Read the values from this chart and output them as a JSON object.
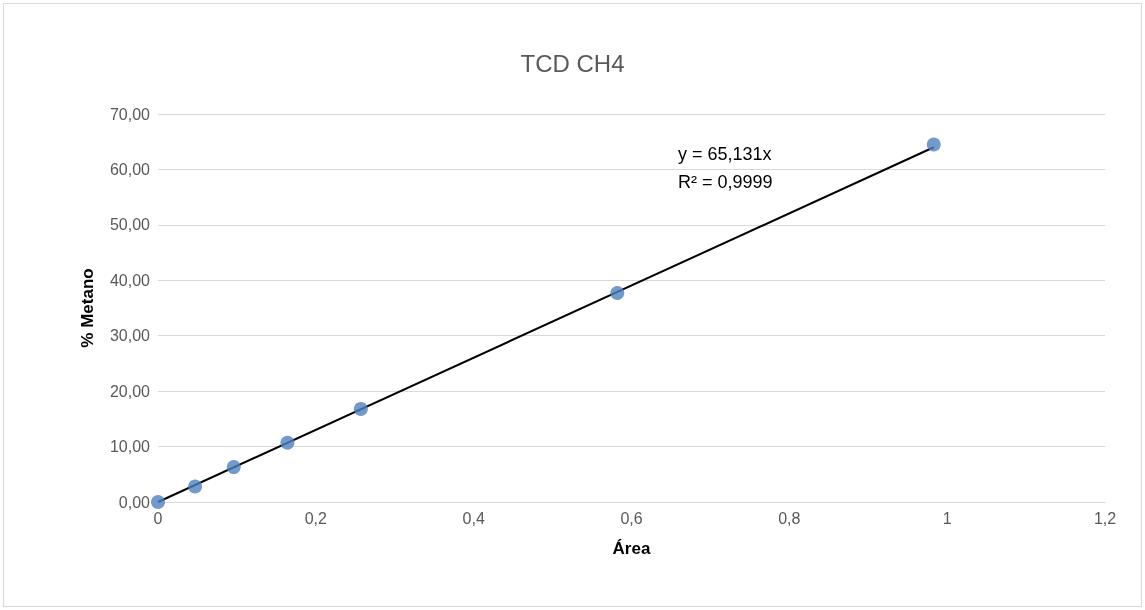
{
  "chart_data": {
    "type": "scatter",
    "title": "TCD CH4",
    "xlabel": "Área",
    "ylabel": "% Metano",
    "xlim": [
      0,
      1.2
    ],
    "xticks": [
      0,
      {
        "value": 0.2,
        "label": "0,2"
      },
      {
        "value": 0.4,
        "label": "0,4"
      },
      {
        "value": 0.6,
        "label": "0,6"
      },
      {
        "value": 0.8,
        "label": "0,8"
      },
      1,
      {
        "value": 1.2,
        "label": "1,2"
      }
    ],
    "ylim": [
      0,
      70
    ],
    "yticks": [
      {
        "value": 0,
        "label": "0,00"
      },
      {
        "value": 10,
        "label": "10,00"
      },
      {
        "value": 20,
        "label": "20,00"
      },
      {
        "value": 30,
        "label": "30,00"
      },
      {
        "value": 40,
        "label": "40,00"
      },
      {
        "value": 50,
        "label": "50,00"
      },
      {
        "value": 60,
        "label": "60,00"
      },
      {
        "value": 70,
        "label": "70,00"
      }
    ],
    "grid": "y",
    "marker": "circle",
    "series": [
      {
        "color": "#4f81bd",
        "x": [
          0,
          0.047,
          0.096,
          0.164,
          0.257,
          0.582,
          0.983
        ],
        "values": [
          0,
          2.8,
          6.3,
          10.7,
          16.8,
          37.7,
          64.5
        ]
      },
      {
        "type": "line",
        "color": "#000000",
        "marker": "none",
        "line_style": "solid",
        "x": [
          0,
          0.983
        ],
        "values": [
          0,
          64.0
        ]
      }
    ],
    "annotations": [
      "y = 65,131x",
      "R² = 0,9999"
    ]
  }
}
